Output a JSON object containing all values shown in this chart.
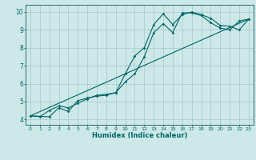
{
  "xlabel": "Humidex (Indice chaleur)",
  "background_color": "#cce8e8",
  "grid_color": "#aacece",
  "line_color": "#006666",
  "spine_color": "#336666",
  "xlim": [
    -0.5,
    23.5
  ],
  "ylim": [
    3.7,
    10.4
  ],
  "xticks": [
    0,
    1,
    2,
    3,
    4,
    5,
    6,
    7,
    8,
    9,
    10,
    11,
    12,
    13,
    14,
    15,
    16,
    17,
    18,
    19,
    20,
    21,
    22,
    23
  ],
  "yticks": [
    4,
    5,
    6,
    7,
    8,
    9,
    10
  ],
  "line1_x": [
    0,
    1,
    2,
    3,
    4,
    5,
    6,
    7,
    8,
    9,
    10,
    11,
    12,
    13,
    14,
    15,
    16,
    17,
    18,
    19,
    20,
    21,
    22,
    23
  ],
  "line1_y": [
    4.2,
    4.15,
    4.5,
    4.75,
    4.65,
    4.9,
    5.15,
    5.35,
    5.4,
    5.5,
    6.1,
    6.55,
    7.5,
    8.85,
    9.35,
    8.85,
    9.95,
    9.95,
    9.8,
    9.4,
    9.1,
    9.0,
    9.5,
    9.6
  ],
  "line2_x": [
    0,
    2,
    3,
    4,
    5,
    6,
    7,
    8,
    9,
    10,
    11,
    12,
    13,
    14,
    15,
    16,
    17,
    18,
    19,
    20,
    21,
    22,
    23
  ],
  "line2_y": [
    4.2,
    4.15,
    4.65,
    4.45,
    5.05,
    5.2,
    5.3,
    5.35,
    5.5,
    6.55,
    7.55,
    8.0,
    9.3,
    9.9,
    9.3,
    9.85,
    10.0,
    9.85,
    9.65,
    9.25,
    9.2,
    9.0,
    9.6
  ],
  "line3_x": [
    0,
    23
  ],
  "line3_y": [
    4.2,
    9.6
  ]
}
